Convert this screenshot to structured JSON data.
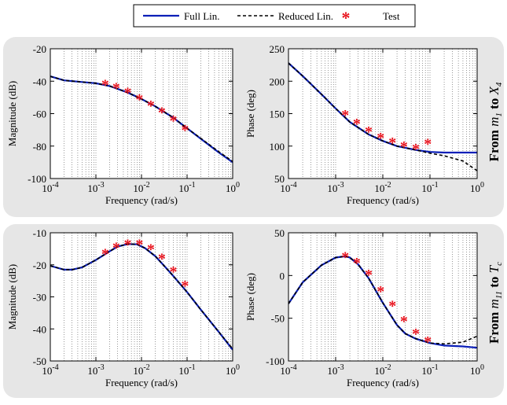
{
  "colors": {
    "full": "#0b1fb8",
    "reduced": "#000000",
    "test": "#e8111b",
    "panel_bg": "#e6e6e6",
    "grid": "#555555"
  },
  "legend": {
    "full": "Full Lin.",
    "reduced": "Reduced Lin.",
    "test": "Test"
  },
  "rows": [
    {
      "label_prefix": "From ",
      "label_math": "m",
      "label_sub": "1",
      "label_mid": " to ",
      "label_math2": "X",
      "label_sub2": "4"
    },
    {
      "label_prefix": "From ",
      "label_math": "m",
      "label_sub": "11",
      "label_mid": " to ",
      "label_math2": "T",
      "label_sub2": "c"
    }
  ],
  "chart_data": [
    {
      "type": "line",
      "x_scale": "log",
      "xlim": [
        0.0001,
        1
      ],
      "ylim": [
        -100,
        -20
      ],
      "yticks": [
        -100,
        -80,
        -60,
        -40,
        -20
      ],
      "xlabel": "Frequency (rad/s)",
      "ylabel": "Magnitude (dB)",
      "grid": "x-minor",
      "series": [
        {
          "name": "Full Lin.",
          "style": "solid",
          "x": [
            0.0001,
            0.0002,
            0.0005,
            0.001,
            0.002,
            0.005,
            0.01,
            0.02,
            0.05,
            0.1,
            0.2,
            0.5,
            1
          ],
          "y": [
            -37,
            -39.5,
            -40.5,
            -41.3,
            -43,
            -47,
            -51,
            -55.5,
            -62.5,
            -69,
            -75.5,
            -84,
            -90
          ]
        },
        {
          "name": "Reduced Lin.",
          "style": "dashed",
          "x": [
            0.0001,
            0.0002,
            0.0005,
            0.001,
            0.002,
            0.005,
            0.01,
            0.02,
            0.05,
            0.1,
            0.2,
            0.5,
            1
          ],
          "y": [
            -37,
            -39.5,
            -40.5,
            -41.3,
            -43,
            -47,
            -51,
            -55.5,
            -62.5,
            -69,
            -75.2,
            -83.5,
            -89.5
          ]
        },
        {
          "name": "Test",
          "style": "marker",
          "x": [
            0.0016,
            0.0028,
            0.005,
            0.009,
            0.016,
            0.028,
            0.05,
            0.09
          ],
          "y": [
            -42,
            -44,
            -47,
            -51,
            -55,
            -59,
            -64,
            -70
          ]
        }
      ]
    },
    {
      "type": "line",
      "x_scale": "log",
      "xlim": [
        0.0001,
        1
      ],
      "ylim": [
        50,
        250
      ],
      "yticks": [
        50,
        100,
        150,
        200,
        250
      ],
      "xlabel": "Frequency (rad/s)",
      "ylabel": "Phase (deg)",
      "grid": "x-minor",
      "series": [
        {
          "name": "Full Lin.",
          "style": "solid",
          "x": [
            0.0001,
            0.0002,
            0.0005,
            0.001,
            0.002,
            0.005,
            0.01,
            0.02,
            0.05,
            0.1,
            0.2,
            0.5,
            1
          ],
          "y": [
            228,
            208,
            180,
            158,
            137,
            118,
            108,
            100,
            94,
            91,
            90,
            90,
            90
          ]
        },
        {
          "name": "Reduced Lin.",
          "style": "dashed",
          "x": [
            0.0001,
            0.0002,
            0.0005,
            0.001,
            0.002,
            0.005,
            0.01,
            0.02,
            0.05,
            0.1,
            0.2,
            0.5,
            1
          ],
          "y": [
            228,
            208,
            180,
            158,
            137,
            118,
            108,
            100,
            94,
            89,
            85,
            77,
            62
          ]
        },
        {
          "name": "Test",
          "style": "marker",
          "x": [
            0.0016,
            0.0028,
            0.005,
            0.009,
            0.016,
            0.028,
            0.05,
            0.09
          ],
          "y": [
            148,
            135,
            123,
            113,
            106,
            100,
            96,
            104
          ]
        }
      ]
    },
    {
      "type": "line",
      "x_scale": "log",
      "xlim": [
        0.0001,
        1
      ],
      "ylim": [
        -50,
        -10
      ],
      "yticks": [
        -50,
        -40,
        -30,
        -20,
        -10
      ],
      "xlabel": "Frequency (rad/s)",
      "ylabel": "Magnitude (dB)",
      "grid": "x-minor",
      "series": [
        {
          "name": "Full Lin.",
          "style": "solid",
          "x": [
            0.0001,
            0.0002,
            0.0003,
            0.0005,
            0.001,
            0.002,
            0.003,
            0.005,
            0.008,
            0.012,
            0.02,
            0.03,
            0.05,
            0.1,
            0.2,
            0.5,
            1
          ],
          "y": [
            -20.3,
            -21.5,
            -21.5,
            -20.8,
            -18.5,
            -15.8,
            -14.3,
            -13.5,
            -13.6,
            -14.8,
            -17.3,
            -20,
            -23.5,
            -28.5,
            -34,
            -41,
            -46.5
          ]
        },
        {
          "name": "Reduced Lin.",
          "style": "dashed",
          "x": [
            0.0001,
            0.0002,
            0.0003,
            0.0005,
            0.001,
            0.002,
            0.003,
            0.005,
            0.008,
            0.012,
            0.02,
            0.03,
            0.05,
            0.1,
            0.2,
            0.5,
            1
          ],
          "y": [
            -20.3,
            -21.5,
            -21.5,
            -20.8,
            -18.5,
            -15.8,
            -14.3,
            -13.5,
            -13.6,
            -14.8,
            -17.3,
            -20,
            -23.5,
            -28.5,
            -34,
            -41,
            -46.2
          ]
        },
        {
          "name": "Test",
          "style": "marker",
          "x": [
            0.0016,
            0.0028,
            0.005,
            0.009,
            0.016,
            0.028,
            0.05,
            0.09
          ],
          "y": [
            -16.5,
            -14.5,
            -13.5,
            -13.5,
            -15,
            -18,
            -22,
            -26.5
          ]
        }
      ]
    },
    {
      "type": "line",
      "x_scale": "log",
      "xlim": [
        0.0001,
        1
      ],
      "ylim": [
        -100,
        50
      ],
      "yticks": [
        -100,
        -50,
        0,
        50
      ],
      "xlabel": "Frequency (rad/s)",
      "ylabel": "Phase (deg)",
      "grid": "x-minor",
      "series": [
        {
          "name": "Full Lin.",
          "style": "solid",
          "x": [
            0.0001,
            0.0002,
            0.0005,
            0.001,
            0.0016,
            0.002,
            0.003,
            0.005,
            0.01,
            0.02,
            0.03,
            0.05,
            0.1,
            0.2,
            0.5,
            1
          ],
          "y": [
            -33,
            -8,
            12,
            21,
            22.5,
            21,
            13,
            -3,
            -32,
            -58,
            -68,
            -74,
            -79,
            -82,
            -83,
            -84.5
          ]
        },
        {
          "name": "Reduced Lin.",
          "style": "dashed",
          "x": [
            0.0001,
            0.0002,
            0.0005,
            0.001,
            0.0016,
            0.002,
            0.003,
            0.005,
            0.01,
            0.02,
            0.03,
            0.05,
            0.1,
            0.2,
            0.5,
            1
          ],
          "y": [
            -33,
            -8,
            12,
            21,
            22.5,
            21,
            13,
            -3,
            -32,
            -58,
            -68,
            -74,
            -79,
            -80,
            -78,
            -71
          ]
        },
        {
          "name": "Test",
          "style": "marker",
          "x": [
            0.0016,
            0.0028,
            0.005,
            0.009,
            0.016,
            0.028,
            0.05,
            0.09
          ],
          "y": [
            22,
            15,
            1,
            -18,
            -35,
            -53,
            -68,
            -77
          ]
        }
      ]
    }
  ]
}
